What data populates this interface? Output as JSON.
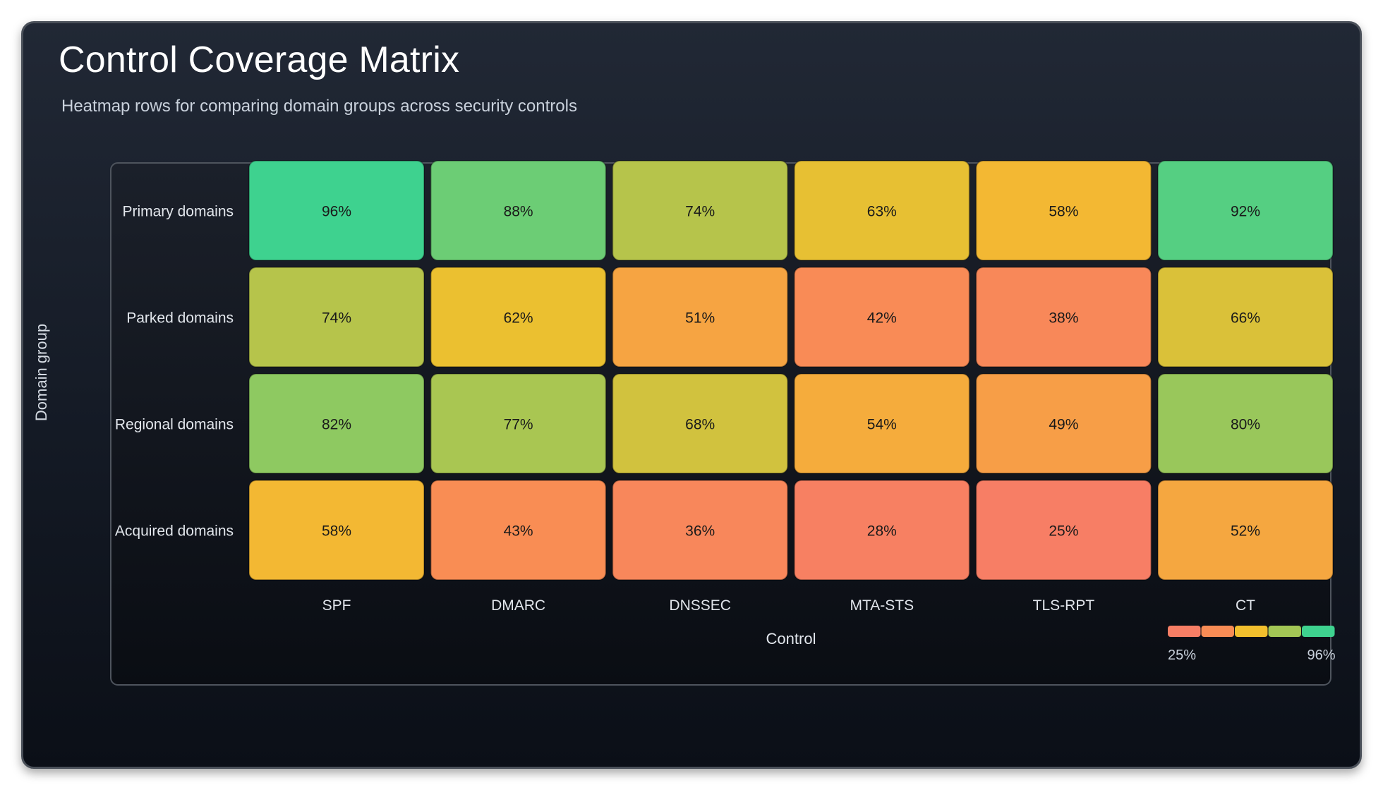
{
  "title": "Control Coverage Matrix",
  "subtitle": "Heatmap rows for comparing domain groups across security controls",
  "colors": {
    "scale": [
      "#f77e65",
      "#f98c55",
      "#f2bf2d",
      "#a3c655",
      "#3ed28f"
    ],
    "cell_text": "#1a1a1a",
    "axis_text": "#e2e6ec"
  },
  "chart_data": {
    "type": "heatmap",
    "xlabel": "Control",
    "ylabel": "Domain group",
    "columns": [
      "SPF",
      "DMARC",
      "DNSSEC",
      "MTA-STS",
      "TLS-RPT",
      "CT"
    ],
    "rows": [
      "Primary domains",
      "Parked domains",
      "Regional domains",
      "Acquired domains"
    ],
    "values": [
      [
        96,
        88,
        74,
        63,
        58,
        92
      ],
      [
        74,
        62,
        51,
        42,
        38,
        66
      ],
      [
        82,
        77,
        68,
        54,
        49,
        80
      ],
      [
        58,
        43,
        36,
        28,
        25,
        52
      ]
    ],
    "cell_labels": [
      [
        "96%",
        "88%",
        "74%",
        "63%",
        "58%",
        "92%"
      ],
      [
        "74%",
        "62%",
        "51%",
        "42%",
        "38%",
        "66%"
      ],
      [
        "82%",
        "77%",
        "68%",
        "54%",
        "49%",
        "80%"
      ],
      [
        "58%",
        "43%",
        "36%",
        "28%",
        "25%",
        "52%"
      ]
    ],
    "unit": "%",
    "value_range": [
      25,
      96
    ],
    "legend": {
      "position": "bottom-right",
      "min_label": "25%",
      "max_label": "96%"
    }
  }
}
